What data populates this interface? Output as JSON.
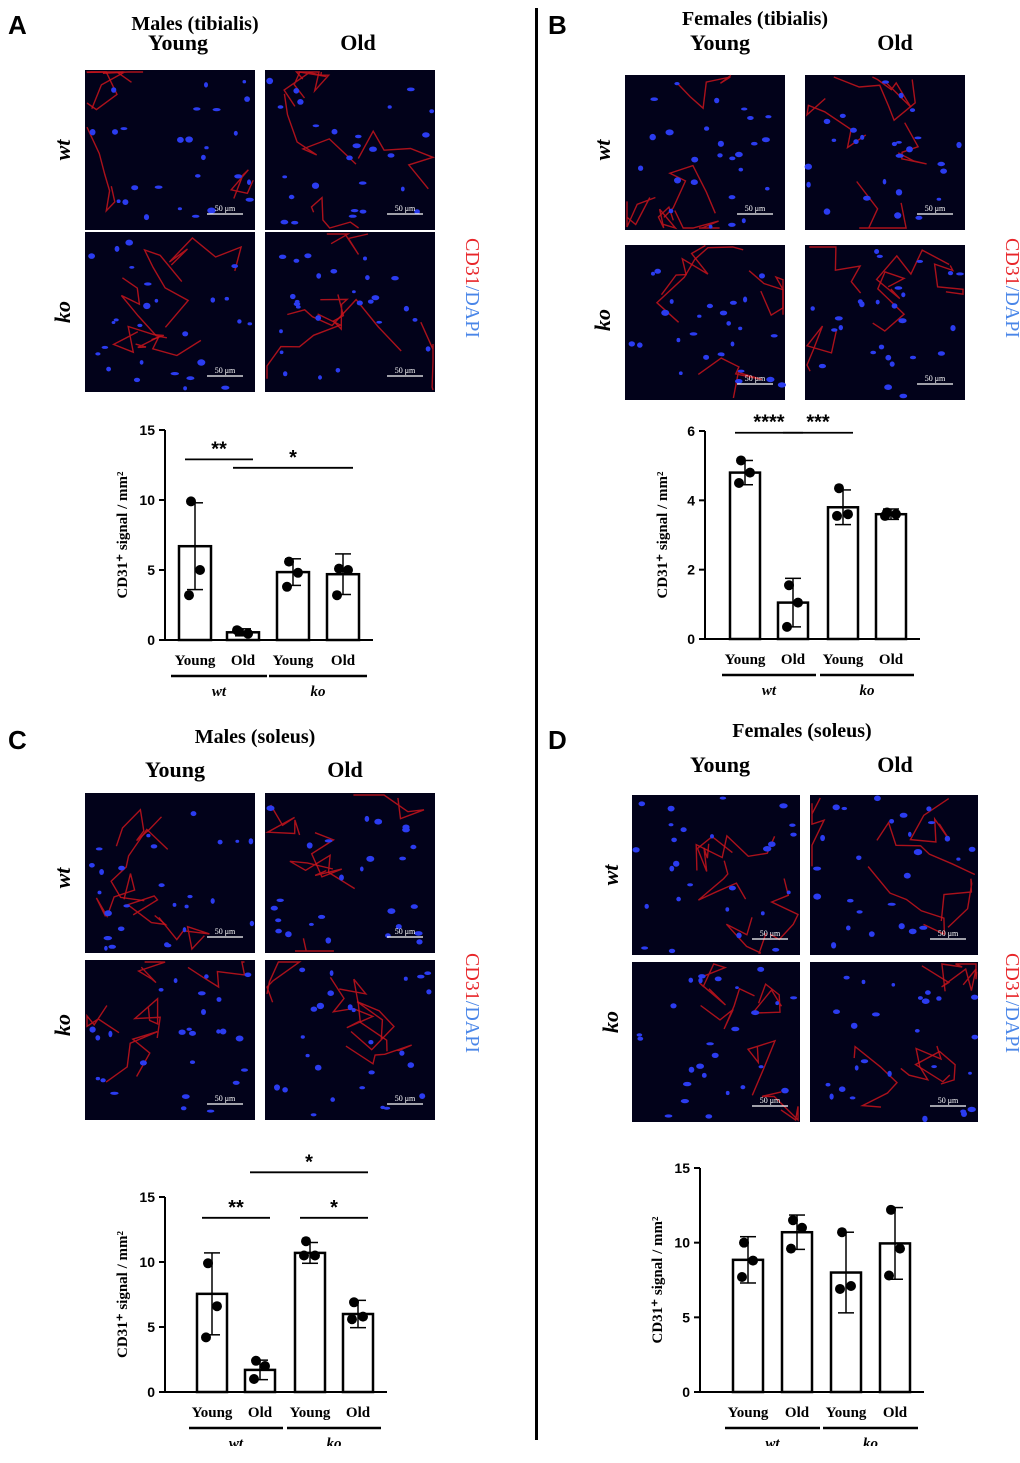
{
  "stain_label": {
    "marker": "CD31",
    "separator": "/",
    "counter": "DAPI",
    "marker_color": "#e8262a",
    "counter_color": "#4a86e8"
  },
  "scale_bar_label": "50 μm",
  "y_axis_label": "CD31⁺ signal / mm²",
  "panels": [
    {
      "letter": "A",
      "title": "Males (tibialis)",
      "column_labels": [
        "Young",
        "Old"
      ],
      "row_labels": [
        "wt",
        "ko"
      ],
      "chart_data": {
        "type": "bar",
        "categories": [
          "Young",
          "Old",
          "Young",
          "Old"
        ],
        "groups": [
          {
            "label": "wt",
            "categories": [
              0,
              1
            ]
          },
          {
            "label": "ko",
            "categories": [
              2,
              3
            ]
          }
        ],
        "values": [
          6.7,
          0.55,
          4.85,
          4.7
        ],
        "errors": [
          3.1,
          0.25,
          0.95,
          1.45
        ],
        "points": [
          [
            9.9,
            5.0,
            3.2
          ],
          [
            0.6,
            0.45,
            0.7
          ],
          [
            5.6,
            4.8,
            3.8
          ],
          [
            5.1,
            5.0,
            3.2
          ]
        ],
        "ylim": [
          0,
          15
        ],
        "yticks": [
          0,
          5,
          10,
          15
        ],
        "ylabel": "CD31⁺ signal / mm²",
        "significance": [
          {
            "from": 0,
            "to": 1,
            "label": "**",
            "y": 12.9
          },
          {
            "from": 1,
            "to": 3,
            "label": "*",
            "y": 12.3
          }
        ]
      }
    },
    {
      "letter": "B",
      "title": "Females (tibialis)",
      "column_labels": [
        "Young",
        "Old"
      ],
      "row_labels": [
        "wt",
        "ko"
      ],
      "chart_data": {
        "type": "bar",
        "categories": [
          "Young",
          "Old",
          "Young",
          "Old"
        ],
        "groups": [
          {
            "label": "wt",
            "categories": [
              0,
              1
            ]
          },
          {
            "label": "ko",
            "categories": [
              2,
              3
            ]
          }
        ],
        "values": [
          4.8,
          1.05,
          3.8,
          3.6
        ],
        "errors": [
          0.35,
          0.7,
          0.5,
          0.15
        ],
        "points": [
          [
            5.15,
            4.8,
            4.5
          ],
          [
            1.55,
            1.05,
            0.35
          ],
          [
            4.35,
            3.6,
            3.55
          ],
          [
            3.65,
            3.6,
            3.55
          ]
        ],
        "ylim": [
          0,
          6
        ],
        "yticks": [
          0,
          2,
          4,
          6
        ],
        "ylabel": "CD31⁺ signal / mm²",
        "significance": [
          {
            "from": 0,
            "to": 1,
            "label": "****",
            "y": 5.95
          },
          {
            "from": 1,
            "to": 2,
            "label": "***",
            "y": 5.95
          }
        ]
      }
    },
    {
      "letter": "C",
      "title": "Males (soleus)",
      "column_labels": [
        "Young",
        "Old"
      ],
      "row_labels": [
        "wt",
        "ko"
      ],
      "chart_data": {
        "type": "bar",
        "categories": [
          "Young",
          "Old",
          "Young",
          "Old"
        ],
        "groups": [
          {
            "label": "wt",
            "categories": [
              0,
              1
            ]
          },
          {
            "label": "ko",
            "categories": [
              2,
              3
            ]
          }
        ],
        "values": [
          7.55,
          1.7,
          10.7,
          6.0
        ],
        "errors": [
          3.15,
          0.75,
          0.8,
          1.05
        ],
        "points": [
          [
            9.9,
            6.6,
            4.2
          ],
          [
            2.4,
            2.0,
            1.0
          ],
          [
            11.6,
            10.5,
            10.5
          ],
          [
            6.9,
            5.8,
            5.6
          ]
        ],
        "ylim": [
          0,
          15
        ],
        "yticks": [
          0,
          5,
          10,
          15
        ],
        "ylabel": "CD31⁺ signal / mm²",
        "significance": [
          {
            "from": 0,
            "to": 1,
            "label": "**",
            "y": 13.4
          },
          {
            "from": 2,
            "to": 3,
            "label": "*",
            "y": 13.4
          },
          {
            "from": 1,
            "to": 3,
            "label": "*",
            "y": 16.9
          }
        ]
      }
    },
    {
      "letter": "D",
      "title": "Females (soleus)",
      "column_labels": [
        "Young",
        "Old"
      ],
      "row_labels": [
        "wt",
        "ko"
      ],
      "chart_data": {
        "type": "bar",
        "categories": [
          "Young",
          "Old",
          "Young",
          "Old"
        ],
        "groups": [
          {
            "label": "wt",
            "categories": [
              0,
              1
            ]
          },
          {
            "label": "ko",
            "categories": [
              2,
              3
            ]
          }
        ],
        "values": [
          8.85,
          10.7,
          8.0,
          9.95
        ],
        "errors": [
          1.55,
          1.15,
          2.7,
          2.4
        ],
        "points": [
          [
            10.0,
            8.8,
            7.7
          ],
          [
            11.5,
            11.0,
            9.6
          ],
          [
            10.7,
            7.1,
            6.9
          ],
          [
            12.2,
            9.6,
            7.8
          ]
        ],
        "ylim": [
          0,
          15
        ],
        "yticks": [
          0,
          5,
          10,
          15
        ],
        "ylabel": "CD31⁺ signal / mm²",
        "significance": []
      }
    }
  ]
}
